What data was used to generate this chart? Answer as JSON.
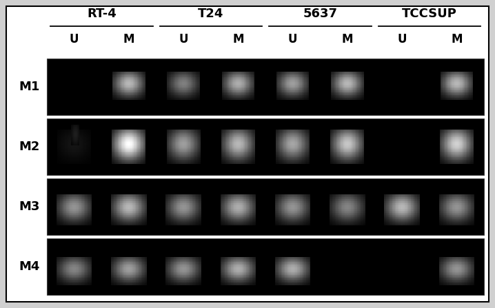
{
  "cell_lines": [
    "RT-4",
    "T24",
    "5637",
    "TCCSUP"
  ],
  "row_labels": [
    "M1",
    "M2",
    "M3",
    "M4"
  ],
  "col_labels": [
    "U",
    "M",
    "U",
    "M",
    "U",
    "M",
    "U",
    "M"
  ],
  "fig_bg": "#d0d0d0",
  "outer_border_color": "#000000",
  "gel_bg": "#000000",
  "band_data": {
    "M1": [
      0,
      0.72,
      0.5,
      0.68,
      0.62,
      0.72,
      0,
      0.72
    ],
    "M2": [
      0.08,
      1.0,
      0.62,
      0.72,
      0.65,
      0.78,
      0,
      0.82
    ],
    "M3": [
      0.58,
      0.72,
      0.58,
      0.68,
      0.58,
      0.52,
      0.72,
      0.58
    ],
    "M4": [
      0.52,
      0.62,
      0.58,
      0.68,
      0.68,
      0,
      0,
      0.58
    ]
  },
  "label_fontsize": 13,
  "um_fontsize": 12,
  "row_label_fontsize": 13
}
